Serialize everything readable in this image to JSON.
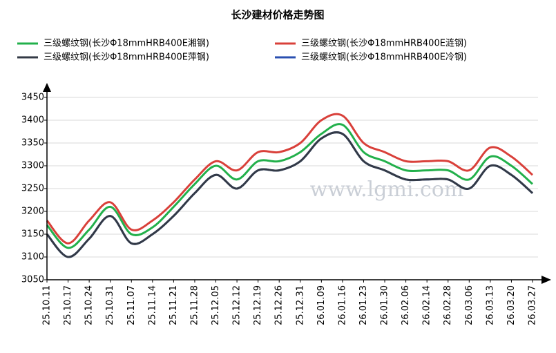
{
  "chart_data": {
    "type": "line",
    "title": "长沙建材价格走势图",
    "watermark": "www.lgmi.com",
    "categories": [
      "25.10.11",
      "25.10.17",
      "25.10.24",
      "25.10.31",
      "25.11.07",
      "25.11.14",
      "25.11.21",
      "25.11.28",
      "25.12.05",
      "25.12.12",
      "25.12.19",
      "25.12.26",
      "25.12.31",
      "26.01.09",
      "26.01.16",
      "26.01.23",
      "26.01.30",
      "26.02.06",
      "26.02.14",
      "26.02.28",
      "26.03.06",
      "26.03.13",
      "26.03.20",
      "26.03.27"
    ],
    "series": [
      {
        "name": "三级螺纹钢(长沙Φ18mmHRB400E湘钢)",
        "color": "#22b04b",
        "values": [
          3170,
          3120,
          3160,
          3210,
          3150,
          3165,
          3210,
          3260,
          3300,
          3270,
          3310,
          3310,
          3330,
          3370,
          3390,
          3330,
          3310,
          3290,
          3290,
          3290,
          3270,
          3320,
          3300,
          3260
        ]
      },
      {
        "name": "三级螺纹钢(长沙Φ18mmHRB400E涟钢)",
        "color": "#d9403a",
        "values": [
          3180,
          3130,
          3180,
          3220,
          3160,
          3180,
          3220,
          3270,
          3310,
          3290,
          3330,
          3330,
          3350,
          3400,
          3410,
          3350,
          3330,
          3310,
          3310,
          3310,
          3290,
          3340,
          3320,
          3280
        ]
      },
      {
        "name": "三级螺纹钢(长沙Φ18mmHRB400E萍钢)",
        "color": "#333a46",
        "values": [
          3150,
          3100,
          3140,
          3190,
          3130,
          3150,
          3190,
          3240,
          3280,
          3250,
          3290,
          3290,
          3310,
          3360,
          3370,
          3310,
          3290,
          3270,
          3270,
          3270,
          3250,
          3300,
          3280,
          3240
        ]
      },
      {
        "name": "三级螺纹钢(长沙Φ18mmHRB400E冷钢)",
        "color": "#2a4fb0",
        "values": [
          3150,
          3100,
          3140,
          3190,
          3130,
          3150,
          3190,
          3240,
          3280,
          3250,
          3290,
          3290,
          3310,
          3360,
          3370,
          3310,
          3290,
          3270,
          3270,
          3270,
          3250,
          3300,
          3280,
          3240
        ]
      }
    ],
    "ylim": [
      3050,
      3450
    ],
    "yticks": [
      3050,
      3100,
      3150,
      3200,
      3250,
      3300,
      3350,
      3400,
      3450
    ],
    "grid": true
  }
}
